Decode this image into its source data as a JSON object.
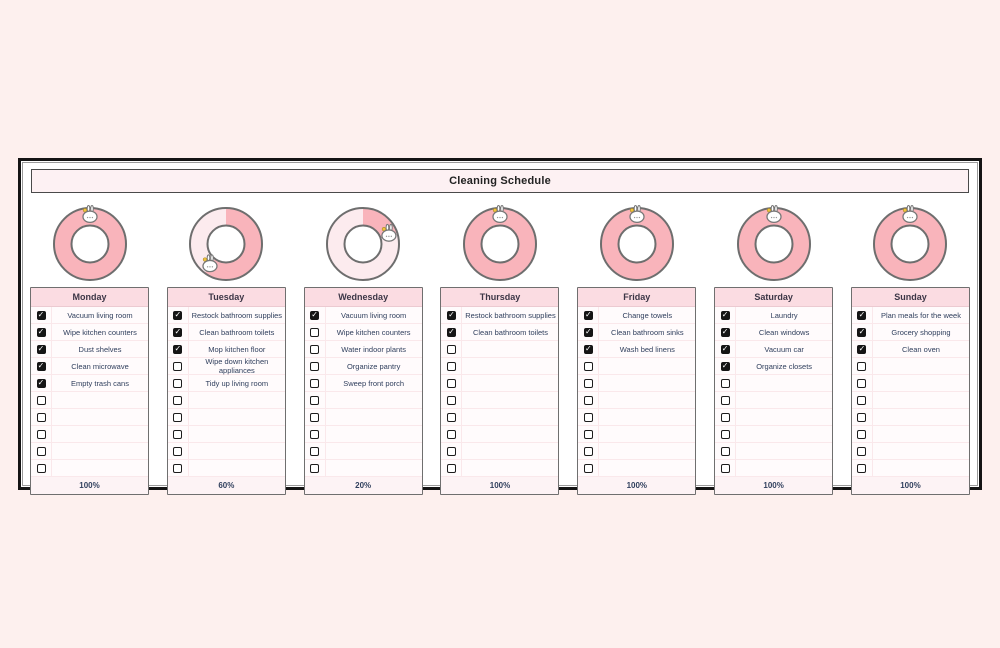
{
  "title": "Cleaning Schedule",
  "rows_per_card": 10,
  "icons": {
    "checkmark": "✓",
    "donut": "donut-progress-chart",
    "marker": "bunny-marker"
  },
  "colors": {
    "page_bg": "#fdf0ee",
    "donut_fill": "#f9b4bb",
    "donut_track": "#fcebee",
    "donut_outline": "#6e6e6e",
    "header_bg": "#fbdce2",
    "text": "#31405e",
    "marker_crown": "#f0c23c"
  },
  "days": [
    {
      "name": "Monday",
      "percent": "100%",
      "progress": 100,
      "tasks": [
        {
          "label": "Vacuum living room",
          "checked": true
        },
        {
          "label": "Wipe kitchen counters",
          "checked": true
        },
        {
          "label": "Dust shelves",
          "checked": true
        },
        {
          "label": "Clean microwave",
          "checked": true
        },
        {
          "label": "Empty trash cans",
          "checked": true
        }
      ]
    },
    {
      "name": "Tuesday",
      "percent": "60%",
      "progress": 60,
      "tasks": [
        {
          "label": "Restock bathroom supplies",
          "checked": true
        },
        {
          "label": "Clean bathroom toilets",
          "checked": true
        },
        {
          "label": "Mop kitchen floor",
          "checked": true
        },
        {
          "label": "Wipe down kitchen appliances",
          "checked": false
        },
        {
          "label": "Tidy up living room",
          "checked": false
        }
      ]
    },
    {
      "name": "Wednesday",
      "percent": "20%",
      "progress": 20,
      "tasks": [
        {
          "label": "Vacuum living room",
          "checked": true
        },
        {
          "label": "Wipe kitchen counters",
          "checked": false
        },
        {
          "label": "Water indoor plants",
          "checked": false
        },
        {
          "label": "Organize pantry",
          "checked": false
        },
        {
          "label": "Sweep front porch",
          "checked": false
        }
      ]
    },
    {
      "name": "Thursday",
      "percent": "100%",
      "progress": 100,
      "tasks": [
        {
          "label": "Restock bathroom supplies",
          "checked": true
        },
        {
          "label": "Clean bathroom toilets",
          "checked": true
        }
      ]
    },
    {
      "name": "Friday",
      "percent": "100%",
      "progress": 100,
      "tasks": [
        {
          "label": "Change towels",
          "checked": true
        },
        {
          "label": "Clean bathroom sinks",
          "checked": true
        },
        {
          "label": "Wash bed linens",
          "checked": true
        }
      ]
    },
    {
      "name": "Saturday",
      "percent": "100%",
      "progress": 100,
      "tasks": [
        {
          "label": "Laundry",
          "checked": true
        },
        {
          "label": "Clean windows",
          "checked": true
        },
        {
          "label": "Vacuum car",
          "checked": true
        },
        {
          "label": "Organize closets",
          "checked": true
        }
      ]
    },
    {
      "name": "Sunday",
      "percent": "100%",
      "progress": 100,
      "tasks": [
        {
          "label": "Plan meals for the week",
          "checked": true
        },
        {
          "label": "Grocery shopping",
          "checked": true
        },
        {
          "label": "Clean oven",
          "checked": true
        }
      ]
    }
  ]
}
